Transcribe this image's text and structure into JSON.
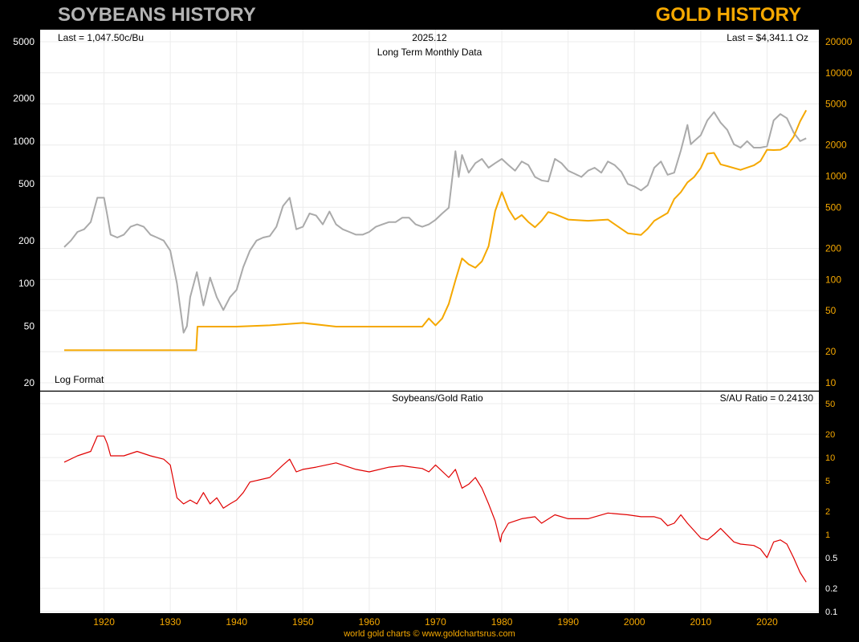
{
  "header": {
    "left_title": "SOYBEANS HISTORY",
    "right_title": "GOLD HISTORY"
  },
  "footer": "world gold charts © www.goldchartsrus.com",
  "chart_data": [
    {
      "type": "line",
      "title": "Long Term Monthly Data",
      "date_label": "2025.12",
      "scale_label": "Log Format",
      "y_scale": "log",
      "left_readout": "Last = 1,047.50c/Bu",
      "right_readout": "Last = $4,341.1 Oz",
      "xlim": [
        1914,
        2026
      ],
      "x_ticks": [
        1920,
        1930,
        1940,
        1950,
        1960,
        1970,
        1980,
        1990,
        2000,
        2010,
        2020
      ],
      "y_left": {
        "ylim": [
          20,
          5000
        ],
        "ticks": [
          20,
          50,
          100,
          200,
          500,
          1000,
          2000,
          5000
        ]
      },
      "y_right": {
        "ylim": [
          10,
          20000
        ],
        "ticks": [
          10,
          20,
          50,
          100,
          200,
          500,
          1000,
          2000,
          5000,
          10000,
          20000
        ]
      },
      "colors": {
        "soybeans": "#aaaaaa",
        "gold": "#f5a800"
      },
      "series": [
        {
          "key": "soybeans",
          "axis": "left",
          "x": [
            1914,
            1915,
            1916,
            1917,
            1918,
            1919,
            1920,
            1920.5,
            1921,
            1922,
            1923,
            1924,
            1925,
            1926,
            1927,
            1928,
            1929,
            1930,
            1931,
            1932,
            1932.5,
            1933,
            1934,
            1935,
            1936,
            1937,
            1938,
            1939,
            1940,
            1941,
            1942,
            1943,
            1944,
            1945,
            1946,
            1947,
            1948,
            1949,
            1950,
            1951,
            1952,
            1953,
            1954,
            1955,
            1956,
            1957,
            1958,
            1959,
            1960,
            1961,
            1962,
            1963,
            1964,
            1965,
            1966,
            1967,
            1968,
            1969,
            1970,
            1971,
            1972,
            1973,
            1973.5,
            1974,
            1975,
            1976,
            1977,
            1978,
            1979,
            1980,
            1981,
            1982,
            1983,
            1984,
            1985,
            1986,
            1987,
            1988,
            1989,
            1990,
            1991,
            1992,
            1993,
            1994,
            1995,
            1996,
            1997,
            1998,
            1999,
            2000,
            2001,
            2002,
            2003,
            2004,
            2005,
            2006,
            2007,
            2008,
            2008.5,
            2009,
            2010,
            2011,
            2012,
            2013,
            2014,
            2015,
            2016,
            2017,
            2018,
            2019,
            2020,
            2021,
            2022,
            2023,
            2024,
            2025,
            2025.9
          ],
          "values": [
            180,
            200,
            230,
            240,
            270,
            400,
            400,
            300,
            220,
            210,
            220,
            250,
            260,
            250,
            220,
            210,
            200,
            170,
            100,
            45,
            50,
            80,
            120,
            70,
            110,
            80,
            65,
            80,
            90,
            130,
            170,
            200,
            210,
            215,
            250,
            350,
            400,
            240,
            250,
            310,
            300,
            260,
            320,
            260,
            240,
            230,
            220,
            220,
            230,
            250,
            260,
            270,
            270,
            290,
            290,
            260,
            250,
            260,
            280,
            310,
            340,
            850,
            560,
            800,
            600,
            700,
            750,
            650,
            700,
            750,
            680,
            620,
            720,
            680,
            560,
            530,
            520,
            750,
            700,
            620,
            590,
            560,
            620,
            650,
            600,
            720,
            680,
            610,
            500,
            480,
            450,
            490,
            650,
            720,
            580,
            600,
            860,
            1300,
            950,
            1000,
            1100,
            1400,
            1600,
            1350,
            1200,
            950,
            900,
            1000,
            900,
            900,
            920,
            1400,
            1550,
            1450,
            1150,
            1000,
            1048
          ]
        },
        {
          "key": "gold",
          "axis": "right",
          "x": [
            1914,
            1933.9,
            1934.1,
            1940,
            1945,
            1950,
            1955,
            1960,
            1965,
            1968,
            1969,
            1970,
            1971,
            1972,
            1973,
            1974,
            1975,
            1976,
            1977,
            1978,
            1979,
            1980,
            1981,
            1982,
            1983,
            1984,
            1985,
            1986,
            1987,
            1988,
            1990,
            1993,
            1996,
            1999,
            2001,
            2002,
            2003,
            2005,
            2006,
            2007,
            2008,
            2009,
            2010,
            2011,
            2012,
            2013,
            2014,
            2016,
            2018,
            2019,
            2020,
            2021,
            2022,
            2023,
            2024,
            2025,
            2025.9
          ],
          "values": [
            20.67,
            20.67,
            35,
            35,
            36,
            38,
            35,
            35,
            35,
            35,
            42,
            36,
            42,
            58,
            98,
            160,
            140,
            130,
            150,
            210,
            460,
            700,
            480,
            380,
            420,
            360,
            320,
            370,
            450,
            430,
            380,
            370,
            380,
            280,
            270,
            310,
            370,
            440,
            600,
            700,
            870,
            980,
            1200,
            1650,
            1680,
            1300,
            1250,
            1150,
            1270,
            1400,
            1800,
            1790,
            1800,
            1950,
            2400,
            3400,
            4341.1
          ]
        }
      ]
    },
    {
      "type": "line",
      "title": "Soybeans/Gold Ratio",
      "right_readout": "S/AU Ratio = 0.24130",
      "y_scale": "log",
      "xlim": [
        1914,
        2026
      ],
      "x_ticks": [
        1920,
        1930,
        1940,
        1950,
        1960,
        1970,
        1980,
        1990,
        2000,
        2010,
        2020
      ],
      "y_right": {
        "ylim": [
          0.1,
          50
        ],
        "ticks": [
          0.1,
          0.2,
          0.5,
          1,
          2,
          5,
          10,
          20,
          50
        ]
      },
      "colors": {
        "ratio": "#e00000"
      },
      "series": [
        {
          "key": "ratio",
          "axis": "right",
          "x": [
            1914,
            1916,
            1918,
            1919,
            1920,
            1920.5,
            1921,
            1923,
            1925,
            1927,
            1929,
            1930,
            1931,
            1932,
            1933,
            1934,
            1935,
            1936,
            1937,
            1938,
            1939,
            1940,
            1941,
            1942,
            1945,
            1947,
            1948,
            1949,
            1950,
            1952,
            1955,
            1958,
            1960,
            1963,
            1965,
            1968,
            1969,
            1970,
            1972,
            1973,
            1974,
            1975,
            1976,
            1977,
            1978,
            1979,
            1979.8,
            1980,
            1981,
            1983,
            1985,
            1986,
            1988,
            1990,
            1993,
            1996,
            1999,
            2001,
            2003,
            2004,
            2005,
            2006,
            2007,
            2008,
            2010,
            2011,
            2012,
            2013,
            2015,
            2016,
            2018,
            2019,
            2020,
            2021,
            2022,
            2023,
            2024,
            2025,
            2025.9
          ],
          "values": [
            8.7,
            10.5,
            12,
            19,
            19,
            15,
            10.5,
            10.5,
            12,
            10.5,
            9.5,
            8,
            3,
            2.5,
            2.8,
            2.5,
            3.5,
            2.5,
            3,
            2.2,
            2.5,
            2.8,
            3.5,
            4.8,
            5.5,
            8,
            9.5,
            6.5,
            7,
            7.5,
            8.5,
            7,
            6.5,
            7.5,
            7.8,
            7.2,
            6.5,
            8,
            5.5,
            7,
            4,
            4.5,
            5.5,
            4,
            2.5,
            1.5,
            0.8,
            1,
            1.4,
            1.6,
            1.7,
            1.4,
            1.8,
            1.6,
            1.6,
            1.9,
            1.8,
            1.7,
            1.7,
            1.6,
            1.3,
            1.4,
            1.8,
            1.4,
            0.9,
            0.85,
            1.0,
            1.2,
            0.8,
            0.75,
            0.72,
            0.65,
            0.5,
            0.8,
            0.85,
            0.75,
            0.5,
            0.32,
            0.2413
          ]
        }
      ]
    }
  ]
}
